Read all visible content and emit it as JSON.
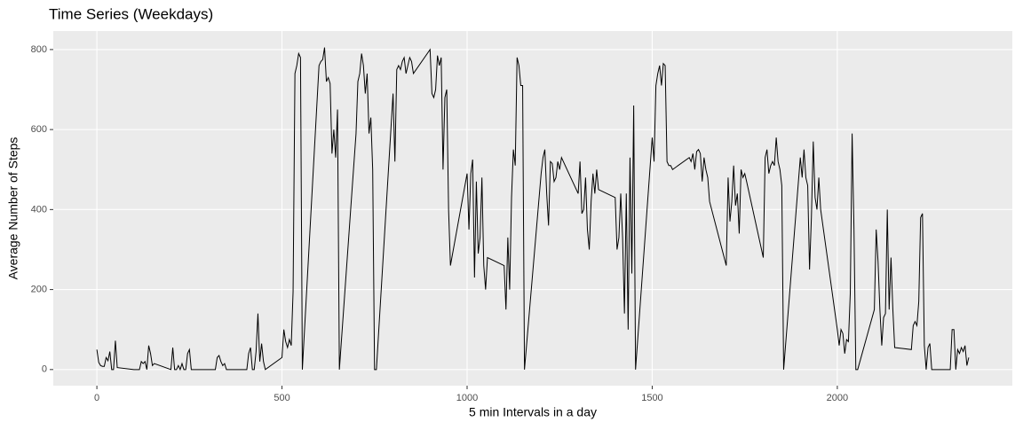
{
  "chart_data": {
    "type": "line",
    "title": "Time Series (Weekdays)",
    "x_label": "5 min Intervals in a day",
    "y_label": "Average Number of Steps",
    "x": [
      0,
      5,
      10,
      15,
      20,
      25,
      30,
      35,
      40,
      45,
      50,
      55,
      100,
      105,
      110,
      115,
      120,
      125,
      130,
      135,
      140,
      145,
      150,
      155,
      200,
      205,
      210,
      215,
      220,
      225,
      230,
      235,
      240,
      245,
      250,
      255,
      300,
      305,
      310,
      315,
      320,
      325,
      330,
      335,
      340,
      345,
      350,
      355,
      400,
      405,
      410,
      415,
      420,
      425,
      430,
      435,
      440,
      445,
      450,
      455,
      500,
      505,
      510,
      515,
      520,
      525,
      530,
      535,
      540,
      545,
      550,
      555,
      600,
      605,
      610,
      615,
      620,
      625,
      630,
      635,
      640,
      645,
      650,
      655,
      700,
      705,
      710,
      715,
      720,
      725,
      730,
      735,
      740,
      745,
      750,
      755,
      800,
      805,
      810,
      815,
      820,
      825,
      830,
      835,
      840,
      845,
      850,
      855,
      900,
      905,
      910,
      915,
      920,
      925,
      930,
      935,
      940,
      945,
      950,
      955,
      1000,
      1005,
      1010,
      1015,
      1020,
      1025,
      1030,
      1035,
      1040,
      1045,
      1050,
      1055,
      1100,
      1105,
      1110,
      1115,
      1120,
      1125,
      1130,
      1135,
      1140,
      1145,
      1150,
      1155,
      1200,
      1205,
      1210,
      1215,
      1220,
      1225,
      1230,
      1235,
      1240,
      1245,
      1250,
      1255,
      1300,
      1305,
      1310,
      1315,
      1320,
      1325,
      1330,
      1335,
      1340,
      1345,
      1350,
      1355,
      1400,
      1405,
      1410,
      1415,
      1420,
      1425,
      1430,
      1435,
      1440,
      1445,
      1450,
      1455,
      1500,
      1505,
      1510,
      1515,
      1520,
      1525,
      1530,
      1535,
      1540,
      1545,
      1550,
      1555,
      1600,
      1605,
      1610,
      1615,
      1620,
      1625,
      1630,
      1635,
      1640,
      1645,
      1650,
      1655,
      1700,
      1705,
      1710,
      1715,
      1720,
      1725,
      1730,
      1735,
      1740,
      1745,
      1750,
      1755,
      1800,
      1805,
      1810,
      1815,
      1820,
      1825,
      1830,
      1835,
      1840,
      1845,
      1850,
      1855,
      1900,
      1905,
      1910,
      1915,
      1920,
      1925,
      1930,
      1935,
      1940,
      1945,
      1950,
      1955,
      2000,
      2005,
      2010,
      2015,
      2020,
      2025,
      2030,
      2035,
      2040,
      2045,
      2050,
      2055,
      2100,
      2105,
      2110,
      2115,
      2120,
      2125,
      2130,
      2135,
      2140,
      2145,
      2150,
      2155,
      2200,
      2205,
      2210,
      2215,
      2220,
      2225,
      2230,
      2235,
      2240,
      2245,
      2250,
      2255,
      2300,
      2305,
      2310,
      2315,
      2320,
      2325,
      2330,
      2335,
      2340,
      2345,
      2350,
      2355
    ],
    "series": [
      {
        "name": "steps",
        "color": "#000000",
        "values": [
          50,
          18,
          10,
          8,
          8,
          30,
          22,
          45,
          0,
          0,
          72,
          5,
          0,
          0,
          0,
          0,
          20,
          15,
          20,
          0,
          60,
          40,
          10,
          15,
          0,
          55,
          0,
          0,
          10,
          0,
          15,
          0,
          0,
          40,
          50,
          0,
          0,
          0,
          0,
          0,
          0,
          30,
          35,
          20,
          10,
          15,
          0,
          0,
          0,
          0,
          40,
          55,
          0,
          0,
          45,
          140,
          20,
          65,
          20,
          0,
          30,
          100,
          70,
          55,
          75,
          60,
          195,
          740,
          760,
          790,
          780,
          0,
          760,
          770,
          775,
          805,
          720,
          730,
          715,
          540,
          600,
          530,
          650,
          0,
          590,
          720,
          740,
          790,
          760,
          690,
          740,
          590,
          630,
          500,
          0,
          0,
          690,
          520,
          750,
          760,
          750,
          770,
          780,
          740,
          760,
          780,
          770,
          740,
          800,
          690,
          680,
          700,
          785,
          760,
          780,
          500,
          680,
          700,
          400,
          260,
          490,
          350,
          490,
          525,
          230,
          470,
          290,
          330,
          480,
          260,
          200,
          280,
          260,
          150,
          330,
          200,
          430,
          550,
          510,
          780,
          760,
          710,
          710,
          0,
          490,
          530,
          550,
          440,
          360,
          520,
          515,
          470,
          480,
          520,
          500,
          530,
          440,
          520,
          390,
          400,
          480,
          350,
          300,
          420,
          490,
          440,
          500,
          450,
          430,
          300,
          330,
          440,
          330,
          140,
          440,
          100,
          530,
          240,
          660,
          0,
          580,
          520,
          710,
          740,
          760,
          710,
          765,
          760,
          520,
          510,
          510,
          500,
          530,
          520,
          540,
          500,
          545,
          550,
          540,
          470,
          530,
          500,
          480,
          420,
          260,
          480,
          370,
          420,
          510,
          410,
          440,
          340,
          500,
          480,
          490,
          470,
          280,
          530,
          550,
          490,
          510,
          520,
          510,
          580,
          520,
          500,
          460,
          0,
          530,
          480,
          550,
          480,
          460,
          250,
          380,
          570,
          430,
          400,
          480,
          400,
          100,
          60,
          100,
          90,
          40,
          75,
          70,
          190,
          590,
          350,
          0,
          0,
          150,
          350,
          270,
          150,
          60,
          130,
          140,
          400,
          150,
          280,
          150,
          55,
          50,
          110,
          120,
          110,
          170,
          380,
          390,
          60,
          0,
          55,
          65,
          0,
          0,
          0,
          100,
          100,
          0,
          50,
          40,
          55,
          45,
          60,
          10,
          30
        ]
      }
    ],
    "xlim": [
      -117.75,
      2472.75
    ],
    "ylim": [
      -40.3,
      846.3
    ],
    "xticks": [
      0,
      500,
      1000,
      1500,
      2000
    ],
    "yticks": [
      0,
      200,
      400,
      600,
      800
    ],
    "grid": true
  }
}
